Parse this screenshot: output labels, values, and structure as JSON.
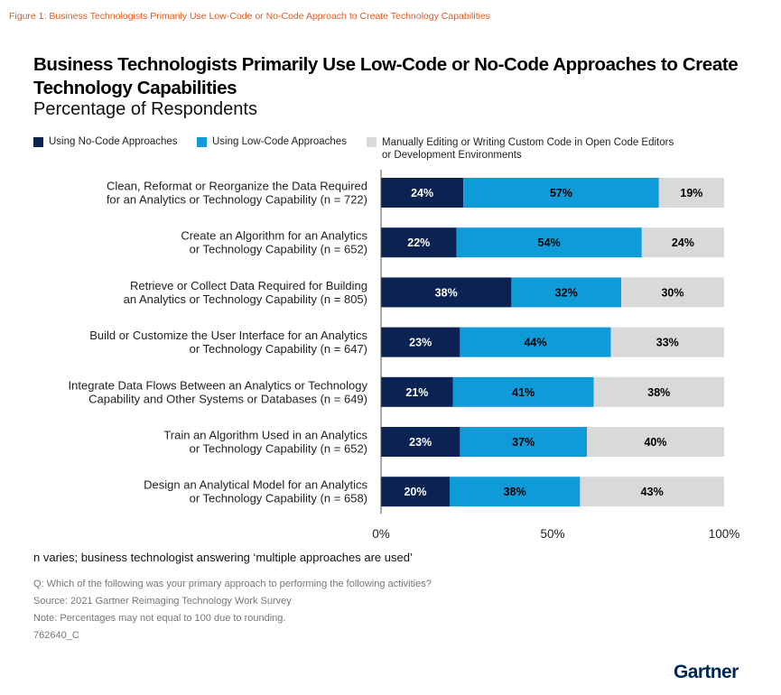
{
  "figure_caption": "Figure 1: Business Technologists Primarily Use Low-Code or No-Code Approach to Create Technology Capabilities",
  "footer": {
    "n_note": "n varies; business technologist answering ‘multiple approaches are used’",
    "question": "Q: Which of the following was your primary approach to performing the following activities?",
    "source": "Source: 2021 Gartner Reimaging Technology Work Survey",
    "note": "Note: Percentages may not equal to 100 due to rounding.",
    "id": "762640_C",
    "logo": "Gartner"
  },
  "chart_data": {
    "type": "bar",
    "orientation": "horizontal",
    "stacked": true,
    "title": "Business Technologists Primarily Use Low-Code or No-Code Approaches to Create Technology Capabilities",
    "subtitle": "Percentage of Respondents",
    "legend_position": "top",
    "grid": false,
    "xlim": [
      0,
      100
    ],
    "x_ticks": [
      "0%",
      "50%",
      "100%"
    ],
    "categories": [
      [
        "Clean, Reformat or Reorganize the Data Required",
        "for an Analytics or Technology Capability (n = 722)"
      ],
      [
        "Create an Algorithm for an Analytics",
        "or Technology Capability (n = 652)"
      ],
      [
        "Retrieve or Collect Data Required for Building",
        "an Analytics or Technology Capability (n = 805)"
      ],
      [
        "Build or Customize the User Interface for an Analytics",
        "or Technology Capability (n = 647)"
      ],
      [
        "Integrate Data Flows Between an Analytics or Technology",
        "Capability and Other Systems or Databases (n = 649)"
      ],
      [
        "Train an Algorithm Used in an Analytics",
        "or Technology Capability (n = 652)"
      ],
      [
        "Design an Analytical Model for an Analytics",
        "or Technology Capability (n = 658)"
      ]
    ],
    "series": [
      {
        "name": "Using No-Code Approaches",
        "color": "#0a2352",
        "label_color": "#ffffff",
        "values": [
          24,
          22,
          38,
          23,
          21,
          23,
          20
        ]
      },
      {
        "name": "Using Low-Code Approaches",
        "color": "#0f9bd7",
        "label_color": "#000000",
        "values": [
          57,
          54,
          32,
          44,
          41,
          37,
          38
        ]
      },
      {
        "name": "Manually Editing or Writing Custom Code in Open Code Editors or Development Environments",
        "name_lines": [
          "Manually Editing or Writing Custom Code in Open Code Editors",
          "or Development Environments"
        ],
        "color": "#d9d9d9",
        "label_color": "#000000",
        "values": [
          19,
          24,
          30,
          33,
          38,
          40,
          43
        ]
      }
    ]
  }
}
